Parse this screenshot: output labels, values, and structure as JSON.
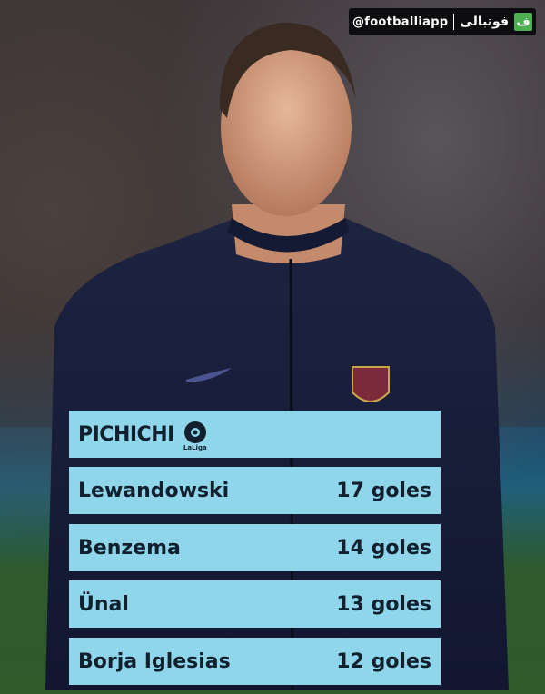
{
  "watermark": {
    "handle": "@footballiapp",
    "brand": "فوتبالی",
    "logo_glyph": "ف",
    "logo_color": "#4caf50"
  },
  "table": {
    "title": "PICHICHI",
    "league_logo_text": "LaLiga",
    "box_color": "#8fd6ea",
    "rows": [
      {
        "name": "Lewandowski",
        "goals": "17 goles"
      },
      {
        "name": "Benzema",
        "goals": "14 goles"
      },
      {
        "name": "Ünal",
        "goals": "13 goles"
      },
      {
        "name": "Borja Iglesias",
        "goals": "12 goles"
      }
    ]
  }
}
